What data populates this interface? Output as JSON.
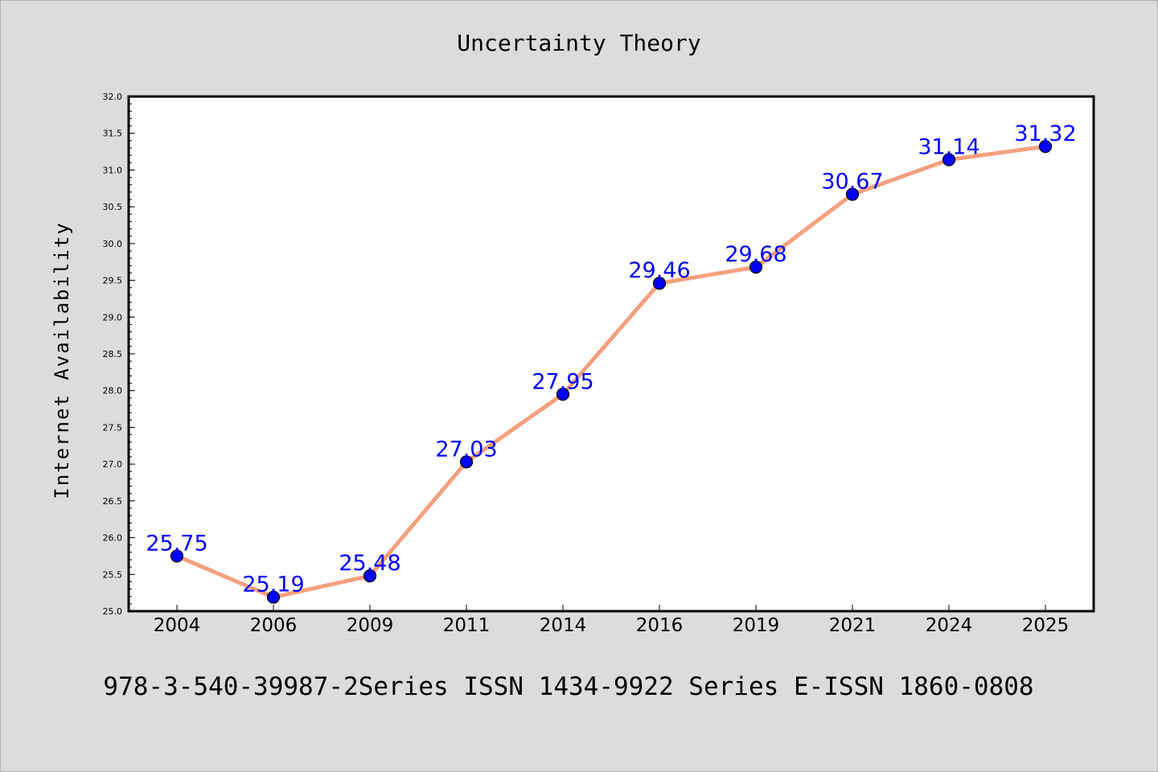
{
  "chart_data": {
    "type": "line",
    "title": "Uncertainty Theory",
    "xlabel": "",
    "ylabel": "Internet Availability",
    "categories": [
      "2004",
      "2006",
      "2009",
      "2011",
      "2014",
      "2016",
      "2019",
      "2021",
      "2024",
      "2025"
    ],
    "values": [
      25.75,
      25.19,
      25.48,
      27.03,
      27.95,
      29.46,
      29.68,
      30.67,
      31.14,
      31.32
    ],
    "data_labels": [
      "25.75",
      "25.19",
      "25.48",
      "27.03",
      "27.95",
      "29.46",
      "29.68",
      "30.67",
      "31.14",
      "31.32"
    ],
    "ylim": [
      25.0,
      32.0
    ],
    "yticks": [
      "25.0",
      "25.5",
      "26.0",
      "26.5",
      "27.0",
      "27.5",
      "28.0",
      "28.5",
      "29.0",
      "29.5",
      "30.0",
      "30.5",
      "31.0",
      "31.5",
      "32.0"
    ],
    "grid": false,
    "footer": "978-3-540-39987-2Series ISSN 1434-9922 Series E-ISSN 1860-0808",
    "colors": {
      "background": "#dcdcdc",
      "plot_background": "#ffffff",
      "line": "#f4a07e",
      "marker": "#0000ff",
      "label": "#0000ff",
      "text": "#000000"
    }
  }
}
